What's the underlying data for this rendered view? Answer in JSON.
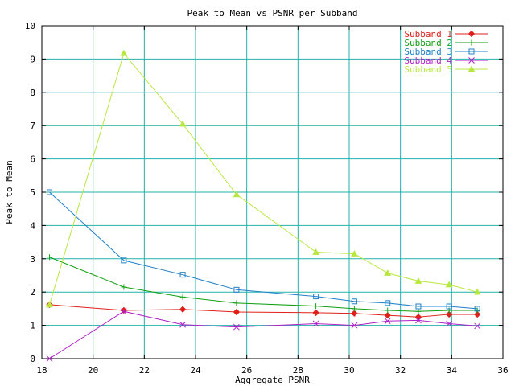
{
  "chart_data": {
    "type": "line",
    "title": "Peak to Mean vs PSNR per Subband",
    "xlabel": "Aggregate PSNR",
    "ylabel": "Peak to Mean",
    "xlim": [
      18,
      36
    ],
    "ylim": [
      0,
      10
    ],
    "xticks": [
      18,
      20,
      22,
      24,
      26,
      28,
      30,
      32,
      34,
      36
    ],
    "yticks": [
      0,
      1,
      2,
      3,
      4,
      5,
      6,
      7,
      8,
      9,
      10
    ],
    "grid": true,
    "grid_color": "#20b2aa",
    "legend_position": "top-right",
    "x": [
      18.3,
      21.2,
      23.5,
      25.6,
      28.7,
      30.2,
      31.5,
      32.7,
      33.9,
      35.0
    ],
    "series": [
      {
        "name": "Subband 1",
        "color": "#e0201c",
        "marker": "diamond",
        "values": [
          1.62,
          1.45,
          1.48,
          1.4,
          1.38,
          1.36,
          1.3,
          1.25,
          1.33,
          1.33
        ]
      },
      {
        "name": "Subband 2",
        "color": "#10a010",
        "marker": "plus",
        "values": [
          3.05,
          2.15,
          1.85,
          1.67,
          1.58,
          1.5,
          1.45,
          1.42,
          1.45,
          1.45
        ]
      },
      {
        "name": "Subband 3",
        "color": "#2080c8",
        "marker": "square",
        "values": [
          5.0,
          2.95,
          2.52,
          2.07,
          1.87,
          1.72,
          1.67,
          1.57,
          1.57,
          1.5
        ]
      },
      {
        "name": "Subband 4",
        "color": "#b020c8",
        "marker": "cross",
        "values": [
          0.0,
          1.42,
          1.02,
          0.95,
          1.05,
          1.0,
          1.13,
          1.15,
          1.05,
          0.98
        ]
      },
      {
        "name": "Subband 5",
        "color": "#b8e840",
        "marker": "triangle",
        "values": [
          1.62,
          9.17,
          7.05,
          4.93,
          3.2,
          3.15,
          2.57,
          2.33,
          2.22,
          2.0
        ]
      }
    ]
  }
}
